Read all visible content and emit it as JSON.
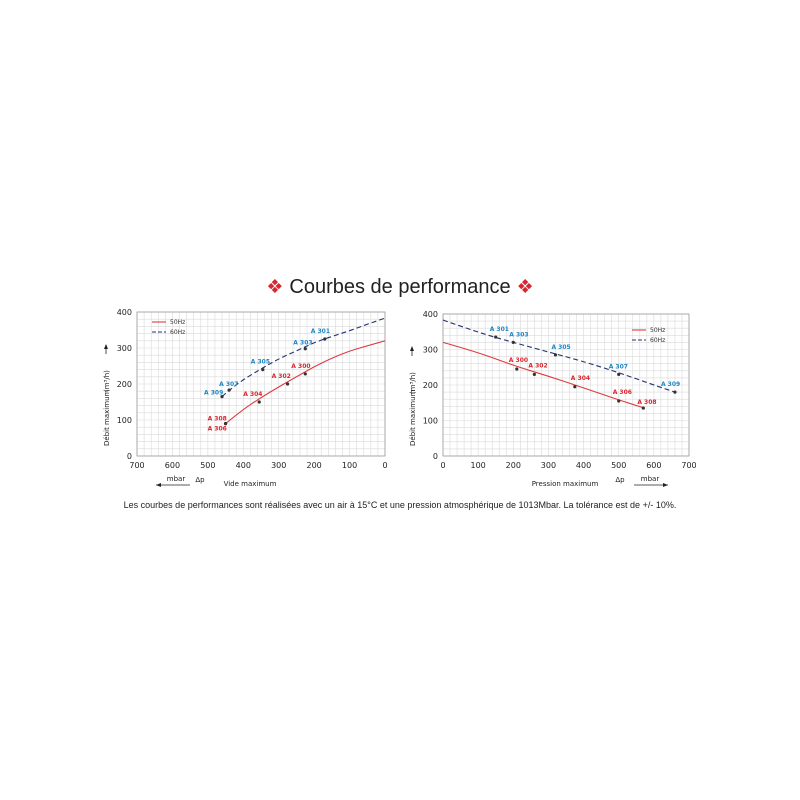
{
  "title": {
    "ornament": "❖",
    "text": "Courbes de performance"
  },
  "note": "Les courbes de performances sont réalisées avec un air à 15°C et une pression atmosphérique de 1013Mbar. La tolérance est de +/- 10%.",
  "colors": {
    "red": "#e0393e",
    "blue": "#23356f",
    "label_red": "#d8262e",
    "label_blue": "#1f86c4"
  },
  "chart_data": [
    {
      "type": "line",
      "xlabel": "Vide maximum",
      "ylabel": "Débit maximum",
      "yunit": "(m³/h)",
      "xunit": "mbar",
      "delta": "Δp",
      "xlim": [
        700,
        0
      ],
      "ylim": [
        0,
        400
      ],
      "x_reversed": true,
      "xticks": [
        700,
        600,
        500,
        400,
        300,
        200,
        100,
        0
      ],
      "yticks": [
        0,
        100,
        200,
        300,
        400
      ],
      "legend_position": "top-left",
      "grid": true,
      "series": [
        {
          "name": "50Hz",
          "style": "solid",
          "curve": [
            [
              450,
              90
            ],
            [
              400,
              130
            ],
            [
              350,
              162
            ],
            [
              300,
              192
            ],
            [
              250,
              220
            ],
            [
              200,
              248
            ],
            [
              150,
              272
            ],
            [
              100,
              292
            ],
            [
              50,
              306
            ],
            [
              0,
              320
            ]
          ],
          "points": [
            {
              "label": "A 308",
              "x": 450,
              "y": 90
            },
            {
              "label": "A 306",
              "x": 450,
              "y": 90
            },
            {
              "label": "A 304",
              "x": 355,
              "y": 150
            },
            {
              "label": "A 302",
              "x": 275,
              "y": 200
            },
            {
              "label": "A 300",
              "x": 225,
              "y": 228
            }
          ]
        },
        {
          "name": "60Hz",
          "style": "dashed",
          "curve": [
            [
              460,
              165
            ],
            [
              420,
              200
            ],
            [
              350,
              242
            ],
            [
              300,
              270
            ],
            [
              250,
              292
            ],
            [
              200,
              315
            ],
            [
              150,
              332
            ],
            [
              100,
              348
            ],
            [
              50,
              366
            ],
            [
              0,
              383
            ]
          ],
          "points": [
            {
              "label": "A 309",
              "x": 460,
              "y": 165
            },
            {
              "label": "A 307",
              "x": 440,
              "y": 183
            },
            {
              "label": "A 305",
              "x": 345,
              "y": 240
            },
            {
              "label": "A 303",
              "x": 225,
              "y": 298
            },
            {
              "label": "A 301",
              "x": 170,
              "y": 325
            }
          ]
        }
      ]
    },
    {
      "type": "line",
      "xlabel": "Pression maximum",
      "ylabel": "Débit maximum",
      "yunit": "(m³/h)",
      "xunit": "mbar",
      "delta": "Δp",
      "xlim": [
        0,
        700
      ],
      "ylim": [
        0,
        400
      ],
      "x_reversed": false,
      "xticks": [
        0,
        100,
        200,
        300,
        400,
        500,
        600,
        700
      ],
      "yticks": [
        0,
        100,
        200,
        300,
        400
      ],
      "legend_position": "top-right",
      "grid": true,
      "series": [
        {
          "name": "50Hz",
          "style": "solid",
          "curve": [
            [
              0,
              320
            ],
            [
              100,
              292
            ],
            [
              200,
              255
            ],
            [
              300,
              225
            ],
            [
              400,
              192
            ],
            [
              500,
              158
            ],
            [
              570,
              136
            ]
          ],
          "points": [
            {
              "label": "A 300",
              "x": 210,
              "y": 245
            },
            {
              "label": "A 302",
              "x": 260,
              "y": 230
            },
            {
              "label": "A 304",
              "x": 375,
              "y": 195
            },
            {
              "label": "A 306",
              "x": 500,
              "y": 155
            },
            {
              "label": "A 308",
              "x": 570,
              "y": 135
            }
          ]
        },
        {
          "name": "60Hz",
          "style": "dashed",
          "curve": [
            [
              0,
              383
            ],
            [
              100,
              348
            ],
            [
              200,
              320
            ],
            [
              300,
              293
            ],
            [
              400,
              266
            ],
            [
              500,
              235
            ],
            [
              600,
              200
            ],
            [
              660,
              180
            ]
          ],
          "points": [
            {
              "label": "A 301",
              "x": 150,
              "y": 335
            },
            {
              "label": "A 303",
              "x": 200,
              "y": 320
            },
            {
              "label": "A 305",
              "x": 320,
              "y": 285
            },
            {
              "label": "A 307",
              "x": 500,
              "y": 230
            },
            {
              "label": "A 309",
              "x": 660,
              "y": 180
            }
          ]
        }
      ]
    }
  ]
}
